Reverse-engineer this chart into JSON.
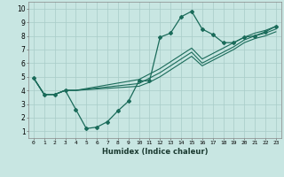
{
  "xlabel": "Humidex (Indice chaleur)",
  "xlim": [
    -0.5,
    23.5
  ],
  "ylim": [
    0.5,
    10.5
  ],
  "xticks": [
    0,
    1,
    2,
    3,
    4,
    5,
    6,
    7,
    8,
    9,
    10,
    11,
    12,
    13,
    14,
    15,
    16,
    17,
    18,
    19,
    20,
    21,
    22,
    23
  ],
  "yticks": [
    1,
    2,
    3,
    4,
    5,
    6,
    7,
    8,
    9,
    10
  ],
  "bg_color": "#c8e6e2",
  "grid_color": "#a8ccc8",
  "line_color": "#1a6b5a",
  "lines": [
    {
      "x": [
        0,
        1,
        2,
        3,
        4,
        5,
        6,
        7,
        8,
        9,
        10,
        11,
        12,
        13,
        14,
        15,
        16,
        17,
        18,
        19,
        20,
        21,
        22,
        23
      ],
      "y": [
        4.9,
        3.7,
        3.7,
        4.0,
        2.6,
        1.2,
        1.3,
        1.7,
        2.5,
        3.2,
        4.7,
        4.7,
        7.9,
        8.2,
        9.4,
        9.8,
        8.5,
        8.1,
        7.5,
        7.5,
        7.9,
        8.0,
        8.3,
        8.7
      ],
      "markers": true
    },
    {
      "x": [
        0,
        1,
        2,
        3,
        4,
        10,
        11,
        12,
        13,
        14,
        15,
        16,
        17,
        18,
        19,
        20,
        21,
        22,
        23
      ],
      "y": [
        4.9,
        3.7,
        3.7,
        4.0,
        4.0,
        4.8,
        5.2,
        5.6,
        6.1,
        6.6,
        7.1,
        6.3,
        6.7,
        7.1,
        7.5,
        7.9,
        8.2,
        8.4,
        8.7
      ],
      "markers": false
    },
    {
      "x": [
        0,
        1,
        2,
        3,
        4,
        10,
        11,
        12,
        13,
        14,
        15,
        16,
        17,
        18,
        19,
        20,
        21,
        22,
        23
      ],
      "y": [
        4.9,
        3.7,
        3.7,
        4.0,
        4.0,
        4.5,
        4.9,
        5.3,
        5.8,
        6.3,
        6.8,
        6.0,
        6.4,
        6.8,
        7.2,
        7.7,
        8.0,
        8.2,
        8.5
      ],
      "markers": false
    },
    {
      "x": [
        0,
        1,
        2,
        3,
        4,
        10,
        11,
        12,
        13,
        14,
        15,
        16,
        17,
        18,
        19,
        20,
        21,
        22,
        23
      ],
      "y": [
        4.9,
        3.7,
        3.7,
        4.0,
        4.0,
        4.3,
        4.6,
        5.0,
        5.5,
        6.0,
        6.5,
        5.8,
        6.2,
        6.6,
        7.0,
        7.5,
        7.8,
        8.0,
        8.3
      ],
      "markers": false
    }
  ]
}
